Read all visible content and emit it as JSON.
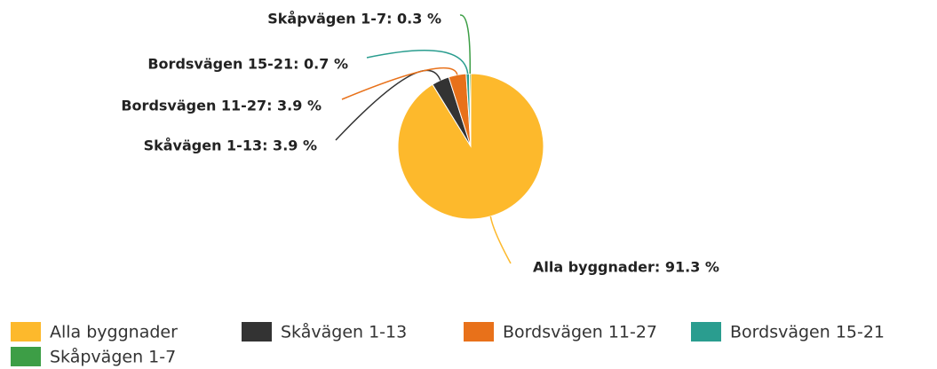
{
  "chart_data": {
    "type": "pie",
    "categories": [
      "Alla byggnader",
      "Skåvägen 1-13",
      "Bordsvägen 11-27",
      "Bordsvägen 15-21",
      "Skåpvägen 1-7"
    ],
    "values": [
      91.3,
      3.9,
      3.9,
      0.7,
      0.3
    ],
    "value_labels": [
      "Alla byggnader: 91.3 %",
      "Skåvägen 1-13: 3.9 %",
      "Bordsvägen 11-27: 3.9 %",
      "Bordsvägen 15-21: 0.7 %",
      "Skåpvägen 1-7: 0.3 %"
    ],
    "colors": [
      "#fdb92c",
      "#333333",
      "#e8711a",
      "#2a9d8f",
      "#3d9e46"
    ],
    "legend": "bottom"
  }
}
